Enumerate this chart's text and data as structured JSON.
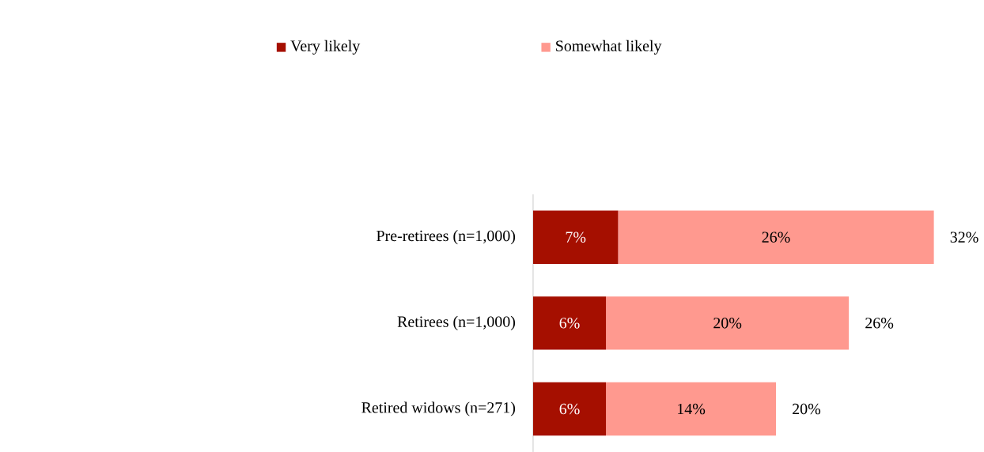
{
  "chart_data": {
    "type": "bar",
    "orientation": "horizontal",
    "stacked": true,
    "legend": "top",
    "categories": [
      "Pre-retirees (n=1,000)",
      "Retirees (n=1,000)",
      "Retired widows (n=271)"
    ],
    "series": [
      {
        "name": "Very likely",
        "color": "#a50f00",
        "values": [
          7,
          6,
          6
        ],
        "value_labels": [
          "7%",
          "6%",
          "6%"
        ]
      },
      {
        "name": "Somewhat likely",
        "color": "#ff998f",
        "values": [
          26,
          20,
          14
        ],
        "value_labels": [
          "26%",
          "20%",
          "14%"
        ]
      }
    ],
    "totals": [
      "32%",
      "26%",
      "20%"
    ]
  }
}
